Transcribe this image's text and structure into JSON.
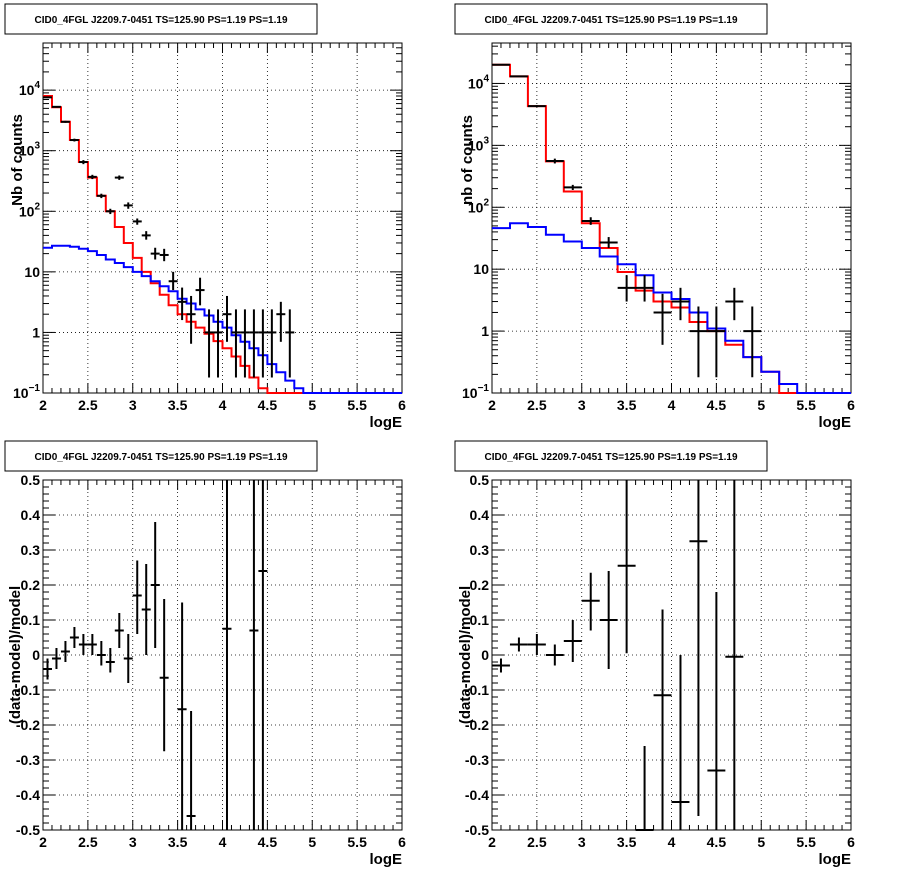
{
  "chart_data": [
    {
      "type": "line",
      "title": "CID0_4FGL J2209.7-0451 TS=125.90 PS=1.19 PS=1.19",
      "xlabel": "logE",
      "ylabel": "Nb of counts",
      "xlim": [
        2,
        6
      ],
      "ylim": [
        0.1,
        60000
      ],
      "yscale": "log",
      "grid": true,
      "xticks": [
        "2",
        "2.5",
        "3",
        "3.5",
        "4",
        "4.5",
        "5",
        "5.5",
        "6"
      ],
      "yticks": [
        {
          "v": 0.1,
          "label": "10",
          "sup": "−1"
        },
        {
          "v": 1,
          "label": "1",
          "sup": ""
        },
        {
          "v": 10,
          "label": "10",
          "sup": ""
        },
        {
          "v": 100,
          "label": "10",
          "sup": "2"
        },
        {
          "v": 1000,
          "label": "10",
          "sup": "3"
        },
        {
          "v": 10000,
          "label": "10",
          "sup": "4"
        }
      ],
      "edges": [
        2.0,
        2.1,
        2.2,
        2.3,
        2.4,
        2.5,
        2.6,
        2.7,
        2.8,
        2.9,
        3.0,
        3.1,
        3.2,
        3.3,
        3.4,
        3.5,
        3.6,
        3.7,
        3.8,
        3.9,
        4.0,
        4.1,
        4.2,
        4.3,
        4.4,
        4.5,
        4.6,
        4.7,
        4.8,
        4.9,
        5.0,
        5.1,
        5.2,
        5.3,
        5.4,
        5.5,
        5.6,
        5.7,
        5.8,
        5.9,
        6.0
      ],
      "series": [
        {
          "role": "total_model",
          "color": "#ff0000",
          "values": [
            8000,
            5200,
            3000,
            1500,
            650,
            360,
            180,
            100,
            55,
            30,
            17,
            10,
            6.5,
            4.2,
            2.8,
            2.0,
            1.5,
            1.2,
            0.95,
            0.72,
            0.55,
            0.4,
            0.28,
            0.18,
            0.12,
            0.1,
            0.1,
            0.1,
            0.1,
            0.1,
            0.1,
            0.1,
            0.1,
            0.1,
            0.1,
            0.1,
            0.1,
            0.1,
            0.1,
            0.1
          ]
        },
        {
          "role": "component",
          "color": "#0000ff",
          "values": [
            25,
            27,
            27,
            26,
            24,
            22,
            19,
            16,
            14,
            12,
            10,
            8.5,
            7,
            5.8,
            4.8,
            3.6,
            3.0,
            2.4,
            1.9,
            1.5,
            1.2,
            0.9,
            0.7,
            0.55,
            0.42,
            0.3,
            0.22,
            0.16,
            0.12,
            0.1,
            0.1,
            0.1,
            0.1,
            0.1,
            0.1,
            0.1,
            0.1,
            0.1,
            0.1,
            0.1
          ]
        },
        {
          "role": "data",
          "points": [
            {
              "x": 2.05,
              "y": 7600,
              "lo": 7400,
              "hi": 7800
            },
            {
              "x": 2.15,
              "y": 5300,
              "lo": 5150,
              "hi": 5450
            },
            {
              "x": 2.25,
              "y": 3000,
              "lo": 2890,
              "hi": 3110
            },
            {
              "x": 2.35,
              "y": 1500,
              "lo": 1420,
              "hi": 1580
            },
            {
              "x": 2.45,
              "y": 650,
              "lo": 600,
              "hi": 700
            },
            {
              "x": 2.55,
              "y": 370,
              "lo": 340,
              "hi": 400
            },
            {
              "x": 2.65,
              "y": 180,
              "lo": 165,
              "hi": 195
            },
            {
              "x": 2.75,
              "y": 100,
              "lo": 90,
              "hi": 110
            },
            {
              "x": 2.85,
              "y": 360,
              "lo": 330,
              "hi": 390
            },
            {
              "x": 2.95,
              "y": 125,
              "lo": 110,
              "hi": 140
            },
            {
              "x": 3.05,
              "y": 68,
              "lo": 60,
              "hi": 76
            },
            {
              "x": 3.15,
              "y": 40,
              "lo": 34,
              "hi": 47
            },
            {
              "x": 3.25,
              "y": 20,
              "lo": 16,
              "hi": 25
            },
            {
              "x": 3.35,
              "y": 19,
              "lo": 15,
              "hi": 24
            },
            {
              "x": 3.45,
              "y": 7,
              "lo": 5,
              "hi": 10
            },
            {
              "x": 3.55,
              "y": 3.2,
              "lo": 1.6,
              "hi": 5.5
            },
            {
              "x": 3.65,
              "y": 2,
              "lo": 0.65,
              "hi": 4
            },
            {
              "x": 3.75,
              "y": 5,
              "lo": 2.8,
              "hi": 8
            },
            {
              "x": 3.85,
              "y": 1.0,
              "lo": 0.18,
              "hi": 2.4
            },
            {
              "x": 3.95,
              "y": 1.0,
              "lo": 0.18,
              "hi": 2.4
            },
            {
              "x": 4.05,
              "y": 2.0,
              "lo": 0.7,
              "hi": 4
            },
            {
              "x": 4.15,
              "y": 1.0,
              "lo": 0.18,
              "hi": 2.4
            },
            {
              "x": 4.25,
              "y": 1.0,
              "lo": 0.18,
              "hi": 2.4
            },
            {
              "x": 4.35,
              "y": 1.0,
              "lo": 0.18,
              "hi": 2.4
            },
            {
              "x": 4.45,
              "y": 1.0,
              "lo": 0.18,
              "hi": 2.4
            },
            {
              "x": 4.55,
              "y": 1.0,
              "lo": 0.18,
              "hi": 2.4
            },
            {
              "x": 4.65,
              "y": 2.0,
              "lo": 0.7,
              "hi": 3.2
            },
            {
              "x": 4.75,
              "y": 1.0,
              "lo": 0.18,
              "hi": 2.4
            }
          ]
        }
      ]
    },
    {
      "type": "line",
      "title": "CID0_4FGL J2209.7-0451 TS=125.90 PS=1.19 PS=1.19",
      "xlabel": "logE",
      "ylabel": "nb of counts",
      "xlim": [
        2,
        6
      ],
      "ylim": [
        0.1,
        45000
      ],
      "yscale": "log",
      "grid": true,
      "xticks": [
        "2",
        "2.5",
        "3",
        "3.5",
        "4",
        "4.5",
        "5",
        "5.5",
        "6"
      ],
      "yticks": [
        {
          "v": 0.1,
          "label": "10",
          "sup": "−1"
        },
        {
          "v": 1,
          "label": "1",
          "sup": ""
        },
        {
          "v": 10,
          "label": "10",
          "sup": ""
        },
        {
          "v": 100,
          "label": "10",
          "sup": "2"
        },
        {
          "v": 1000,
          "label": "10",
          "sup": "3"
        },
        {
          "v": 10000,
          "label": "10",
          "sup": "4"
        }
      ],
      "edges": [
        2.0,
        2.2,
        2.4,
        2.6,
        2.8,
        3.0,
        3.2,
        3.4,
        3.6,
        3.8,
        4.0,
        4.2,
        4.4,
        4.6,
        4.8,
        5.0,
        5.2,
        5.4,
        5.6,
        5.8,
        6.0
      ],
      "series": [
        {
          "role": "total_model",
          "color": "#ff0000",
          "values": [
            20000,
            13000,
            4300,
            550,
            180,
            55,
            22,
            9,
            4.5,
            3.0,
            2.4,
            1.4,
            1.0,
            0.6,
            0.38,
            0.22,
            0.1,
            0.1,
            0.1,
            0.1
          ]
        },
        {
          "role": "component",
          "color": "#0000ff",
          "values": [
            46,
            55,
            48,
            36,
            28,
            22,
            16,
            12,
            8,
            4.2,
            3.3,
            2.0,
            1.1,
            0.7,
            0.38,
            0.22,
            0.14,
            0.1,
            0.1,
            0.1
          ]
        },
        {
          "role": "data",
          "points": [
            {
              "x": 2.1,
              "y": 20000,
              "lo": 19700,
              "hi": 20300
            },
            {
              "x": 2.3,
              "y": 13000,
              "lo": 12700,
              "hi": 13300
            },
            {
              "x": 2.5,
              "y": 4300,
              "lo": 4150,
              "hi": 4450
            },
            {
              "x": 2.7,
              "y": 560,
              "lo": 510,
              "hi": 610
            },
            {
              "x": 2.9,
              "y": 210,
              "lo": 190,
              "hi": 230
            },
            {
              "x": 3.1,
              "y": 60,
              "lo": 52,
              "hi": 69
            },
            {
              "x": 3.3,
              "y": 27,
              "lo": 22,
              "hi": 33
            },
            {
              "x": 3.5,
              "y": 5,
              "lo": 3,
              "hi": 8
            },
            {
              "x": 3.7,
              "y": 5,
              "lo": 3,
              "hi": 8
            },
            {
              "x": 3.9,
              "y": 2,
              "lo": 0.6,
              "hi": 4
            },
            {
              "x": 4.1,
              "y": 3,
              "lo": 1.5,
              "hi": 5
            },
            {
              "x": 4.3,
              "y": 1,
              "lo": 0.18,
              "hi": 2.5
            },
            {
              "x": 4.5,
              "y": 1,
              "lo": 0.18,
              "hi": 2.5
            },
            {
              "x": 4.7,
              "y": 3,
              "lo": 1.5,
              "hi": 5
            },
            {
              "x": 4.9,
              "y": 1,
              "lo": 0.18,
              "hi": 2.5
            }
          ]
        }
      ]
    },
    {
      "type": "scatter",
      "title": "CID0_4FGL J2209.7-0451 TS=125.90 PS=1.19 PS=1.19",
      "xlabel": "logE",
      "ylabel": "(data-model)/model",
      "xlim": [
        2,
        6
      ],
      "ylim": [
        -0.5,
        0.5
      ],
      "grid": true,
      "xticks": [
        "2",
        "2.5",
        "3",
        "3.5",
        "4",
        "4.5",
        "5",
        "5.5",
        "6"
      ],
      "yticks": [
        "-0.5",
        "-0.4",
        "-0.3",
        "-0.2",
        "-0.1",
        "0",
        "0.1",
        "0.2",
        "0.3",
        "0.4",
        "0.5"
      ],
      "xhalfwidth": 0.05,
      "points": [
        {
          "x": 2.05,
          "y": -0.04,
          "lo": -0.07,
          "hi": -0.01
        },
        {
          "x": 2.15,
          "y": -0.01,
          "lo": -0.04,
          "hi": 0.02
        },
        {
          "x": 2.25,
          "y": 0.01,
          "lo": -0.02,
          "hi": 0.04
        },
        {
          "x": 2.35,
          "y": 0.05,
          "lo": 0.02,
          "hi": 0.08
        },
        {
          "x": 2.45,
          "y": 0.03,
          "lo": 0.0,
          "hi": 0.06
        },
        {
          "x": 2.55,
          "y": 0.03,
          "lo": 0.0,
          "hi": 0.06
        },
        {
          "x": 2.65,
          "y": 0.0,
          "lo": -0.03,
          "hi": 0.04
        },
        {
          "x": 2.75,
          "y": -0.02,
          "lo": -0.05,
          "hi": 0.02
        },
        {
          "x": 2.85,
          "y": 0.07,
          "lo": 0.02,
          "hi": 0.12
        },
        {
          "x": 2.95,
          "y": -0.01,
          "lo": -0.08,
          "hi": 0.06
        },
        {
          "x": 3.05,
          "y": 0.17,
          "lo": 0.06,
          "hi": 0.27
        },
        {
          "x": 3.15,
          "y": 0.13,
          "lo": 0.0,
          "hi": 0.26
        },
        {
          "x": 3.25,
          "y": 0.2,
          "lo": 0.02,
          "hi": 0.38
        },
        {
          "x": 3.35,
          "y": -0.065,
          "lo": -0.275,
          "hi": 0.16
        },
        {
          "x": 3.55,
          "y": -0.155,
          "lo": -0.5,
          "hi": 0.15
        },
        {
          "x": 3.65,
          "y": -0.46,
          "lo": -0.5,
          "hi": -0.16
        },
        {
          "x": 4.05,
          "y": 0.075,
          "lo": -0.5,
          "hi": 0.5
        },
        {
          "x": 4.35,
          "y": 0.07,
          "lo": -0.5,
          "hi": 0.5
        },
        {
          "x": 4.45,
          "y": 0.24,
          "lo": -0.5,
          "hi": 0.5
        }
      ]
    },
    {
      "type": "scatter",
      "title": "CID0_4FGL J2209.7-0451 TS=125.90 PS=1.19 PS=1.19",
      "xlabel": "logE",
      "ylabel": "(data-model)/model",
      "xlim": [
        2,
        6
      ],
      "ylim": [
        -0.5,
        0.5
      ],
      "grid": true,
      "xticks": [
        "2",
        "2.5",
        "3",
        "3.5",
        "4",
        "4.5",
        "5",
        "5.5",
        "6"
      ],
      "yticks": [
        "-0.5",
        "-0.4",
        "-0.3",
        "-0.2",
        "-0.1",
        "0",
        "0.1",
        "0.2",
        "0.3",
        "0.4",
        "0.5"
      ],
      "xhalfwidth": 0.1,
      "points": [
        {
          "x": 2.1,
          "y": -0.03,
          "lo": -0.05,
          "hi": -0.01
        },
        {
          "x": 2.3,
          "y": 0.03,
          "lo": 0.01,
          "hi": 0.05
        },
        {
          "x": 2.5,
          "y": 0.03,
          "lo": 0.0,
          "hi": 0.06
        },
        {
          "x": 2.7,
          "y": 0.0,
          "lo": -0.03,
          "hi": 0.03
        },
        {
          "x": 2.9,
          "y": 0.04,
          "lo": -0.02,
          "hi": 0.1
        },
        {
          "x": 3.1,
          "y": 0.155,
          "lo": 0.07,
          "hi": 0.235
        },
        {
          "x": 3.3,
          "y": 0.1,
          "lo": -0.04,
          "hi": 0.24
        },
        {
          "x": 3.5,
          "y": 0.255,
          "lo": 0.005,
          "hi": 0.5
        },
        {
          "x": 3.7,
          "y": -0.5,
          "lo": -0.5,
          "hi": -0.26
        },
        {
          "x": 3.9,
          "y": -0.115,
          "lo": -0.5,
          "hi": 0.13
        },
        {
          "x": 4.1,
          "y": -0.42,
          "lo": -0.5,
          "hi": 0.0
        },
        {
          "x": 4.3,
          "y": 0.325,
          "lo": -0.46,
          "hi": 0.5
        },
        {
          "x": 4.5,
          "y": -0.33,
          "lo": -0.5,
          "hi": 0.18
        },
        {
          "x": 4.7,
          "y": -0.005,
          "lo": -0.5,
          "hi": 0.5
        }
      ]
    }
  ]
}
